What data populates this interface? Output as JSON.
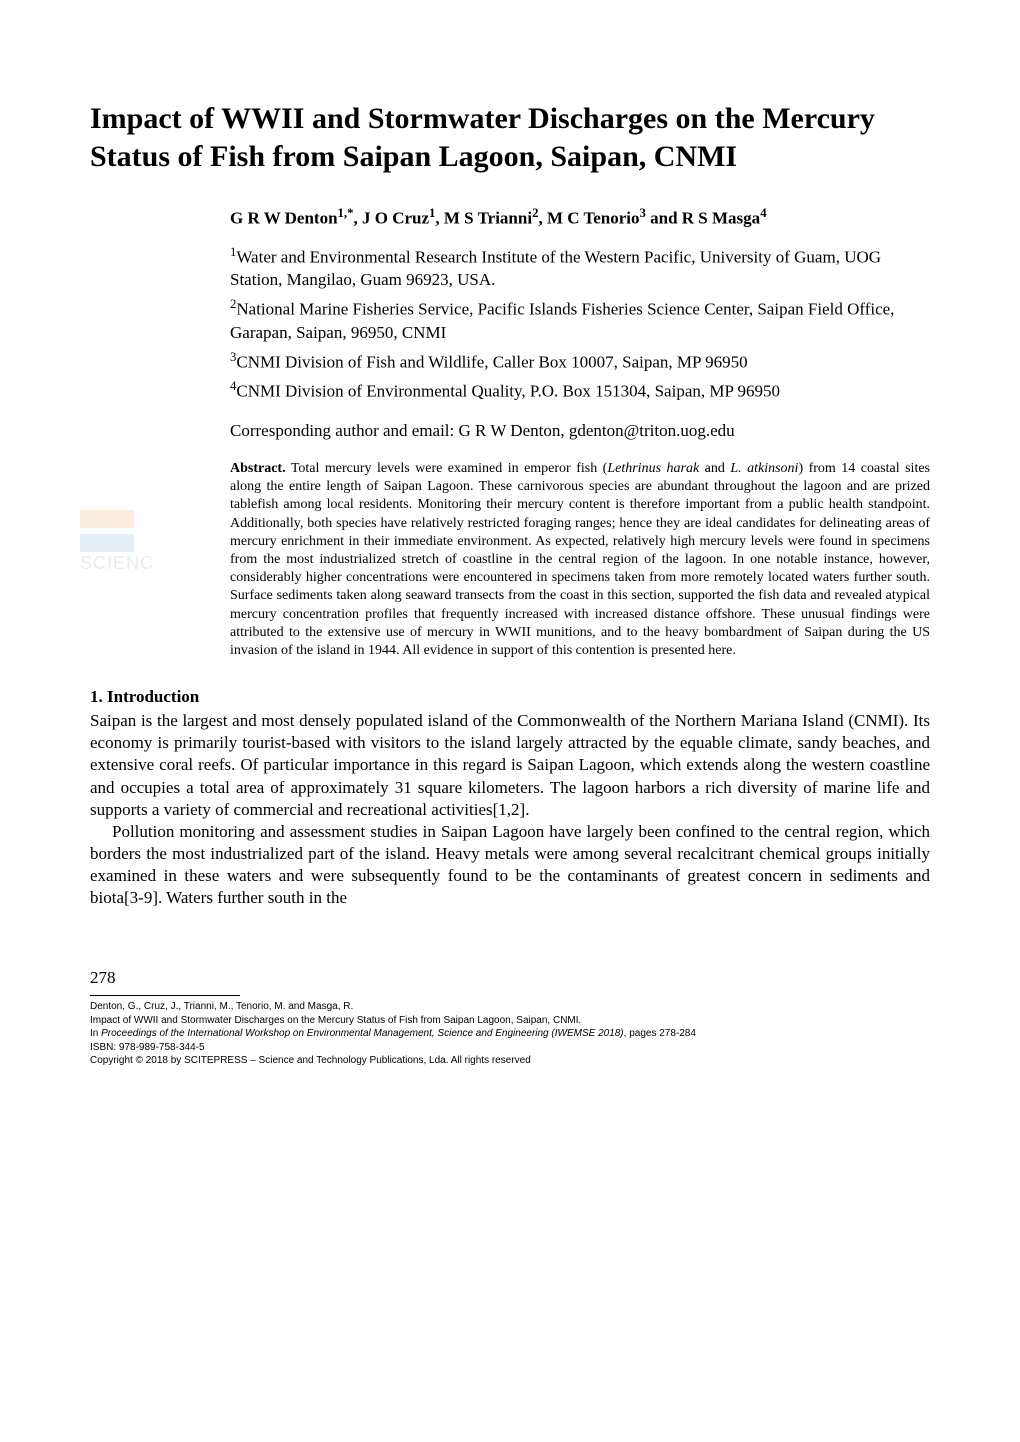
{
  "title_line1": "Impact of WWII and Stormwater Discharges on the Mercury",
  "title_line2": "Status of Fish from Saipan Lagoon, Saipan, CNMI",
  "authors_html": "G R W Denton<sup>1,*</sup>, J O Cruz<sup>1</sup>, M S Trianni<sup>2</sup>, M C Tenorio<sup>3</sup> and R S Masga<sup>4</sup>",
  "affiliations": [
    "<sup>1</sup>Water and Environmental Research Institute of the Western Pacific, University of Guam, UOG Station, Mangilao, Guam 96923, USA.",
    "<sup>2</sup>National Marine Fisheries Service, Pacific Islands Fisheries Science Center, Saipan Field Office, Garapan, Saipan, 96950, CNMI",
    "<sup>3</sup>CNMI Division of Fish and Wildlife, Caller Box 10007, Saipan, MP 96950",
    "<sup>4</sup>CNMI Division of Environmental Quality, P.O. Box 151304, Saipan, MP 96950"
  ],
  "corresponding": "Corresponding author and email: G R W Denton, gdenton@triton.uog.edu",
  "abstract_label": "Abstract.",
  "abstract_pre_italic_1": " Total mercury levels were examined in emperor fish (",
  "abstract_italic_1": "Lethrinus harak",
  "abstract_mid_1": " and ",
  "abstract_italic_2": "L. atkinsoni",
  "abstract_post": ") from 14 coastal sites along the entire length of Saipan Lagoon. These carnivorous species are abundant throughout the lagoon and are prized tablefish among local residents. Monitoring their mercury content is therefore important from a public health standpoint. Additionally, both species have relatively restricted foraging ranges; hence they are ideal candidates for delineating areas of mercury enrichment in their immediate environment. As expected, relatively high mercury levels were found in specimens from the most industrialized stretch of coastline in the central region of the lagoon. In one notable instance, however, considerably higher concentrations were encountered in specimens taken from more remotely located waters further south. Surface sediments taken along seaward transects from the coast in this section, supported the fish data and revealed atypical mercury concentration profiles that frequently increased with increased distance offshore. These unusual findings were attributed to the extensive use of mercury in WWII munitions, and to the heavy bombardment of Saipan during the US invasion of the island in 1944. All evidence in support of this contention is presented here.",
  "watermark_text": "SCIENC",
  "section1_heading": "1. Introduction",
  "intro_para1": "Saipan is the largest and most densely populated island of the Commonwealth of the Northern Mariana Island (CNMI). Its economy is primarily tourist-based with visitors to the island largely attracted by the equable climate, sandy beaches, and extensive coral reefs. Of particular importance in this regard is Saipan Lagoon, which extends along the western coastline and occupies a total area of approximately 31 square kilometers. The lagoon harbors a rich diversity of marine life and supports a variety of commercial and recreational activities[1,2].",
  "intro_para2": "Pollution monitoring and assessment studies in Saipan Lagoon have largely been confined to the central region, which borders the most industrialized part of the island. Heavy metals were among several recalcitrant chemical groups initially examined in these waters and were subsequently found to be the contaminants of greatest concern in sediments and biota[3-9]. Waters further south in the",
  "footer": {
    "page_number": "278",
    "citation_authors": "Denton, G., Cruz, J., Trianni, M., Tenorio, M. and Masga, R.",
    "citation_title": "Impact of WWII and Stormwater Discharges on the Mercury Status of Fish from Saipan Lagoon, Saipan, CNMI.",
    "proceedings_prefix": "In ",
    "proceedings_italic": "Proceedings of the International Workshop on Environmental Management, Science and Engineering (IWEMSE 2018)",
    "proceedings_suffix": ", pages 278-284",
    "isbn": "ISBN: 978-989-758-344-5",
    "copyright": "Copyright © 2018 by SCITEPRESS – Science and Technology Publications, Lda. All rights reserved"
  },
  "colors": {
    "text": "#000000",
    "background": "#ffffff",
    "watermark_orange": "#e8a05a",
    "watermark_blue": "#6fa3c7",
    "watermark_text": "#7a9bb0"
  }
}
